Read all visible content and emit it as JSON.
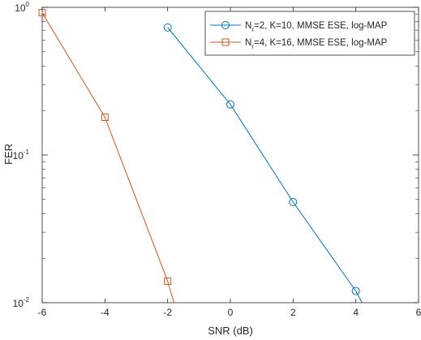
{
  "chart_data": {
    "type": "line",
    "xlabel": "SNR (dB)",
    "ylabel": "FER",
    "xlim": [
      -6,
      6
    ],
    "ylim": [
      0.01,
      1
    ],
    "y_scale": "log",
    "grid": false,
    "legend_position": "top-right",
    "x_ticks": [
      "-6",
      "-4",
      "-2",
      "0",
      "2",
      "4",
      "6"
    ],
    "y_ticks": [
      {
        "base": "10",
        "exp": "-2"
      },
      {
        "base": "10",
        "exp": "-1"
      },
      {
        "base": "10",
        "exp": "0"
      }
    ],
    "series": [
      {
        "name_main": "N",
        "name_sub": "r",
        "name_rest": "=2, K=10, MMSE ESE, log-MAP",
        "color": "#0072BD",
        "marker": "circle",
        "x": [
          -2,
          0,
          2,
          4,
          4.2
        ],
        "y": [
          0.73,
          0.22,
          0.048,
          0.012,
          0.01
        ],
        "marker_count": 4
      },
      {
        "name_main": "N",
        "name_sub": "r",
        "name_rest": "=4, K=16, MMSE ESE, log-MAP",
        "color": "#D95319",
        "marker": "square",
        "x": [
          -6,
          -4,
          -2,
          -1.8
        ],
        "y": [
          0.92,
          0.18,
          0.014,
          0.01
        ],
        "marker_count": 3
      }
    ]
  }
}
